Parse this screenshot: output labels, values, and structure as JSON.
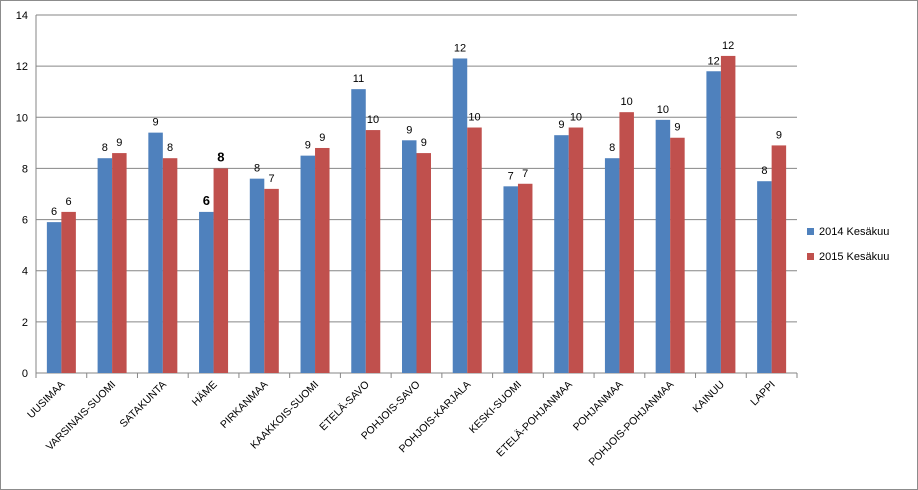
{
  "chart_data": {
    "type": "bar",
    "title": "",
    "xlabel": "",
    "ylabel": "",
    "ylim": [
      0,
      14
    ],
    "yticks": [
      0,
      2,
      4,
      6,
      8,
      10,
      12,
      14
    ],
    "grid": true,
    "legend_position": "right",
    "categories": [
      "UUSIMAA",
      "VARSINAIS-SUOMI",
      "SATAKUNTA",
      "HÄME",
      "PIRKANMAA",
      "KAAKKOIS-SUOMI",
      "ETELÄ-SAVO",
      "POHJOIS-SAVO",
      "POHJOIS-KARJALA",
      "KESKI-SUOMI",
      "ETELÄ-POHJANMAA",
      "POHJANMAA",
      "POHJOIS-POHJANMAA",
      "KAINUU",
      "LAPPI"
    ],
    "series": [
      {
        "name": "2014 Kesäkuu",
        "color": "#4f81bd",
        "values": [
          5.9,
          8.4,
          9.4,
          6.3,
          7.6,
          8.5,
          11.1,
          9.1,
          12.3,
          7.3,
          9.3,
          8.4,
          9.9,
          11.8,
          7.5
        ],
        "labels": [
          "6",
          "8",
          "9",
          "6",
          "8",
          "9",
          "11",
          "9",
          "12",
          "7",
          "9",
          "8",
          "10",
          "12",
          "8"
        ]
      },
      {
        "name": "2015 Kesäkuu",
        "color": "#c0504d",
        "values": [
          6.3,
          8.6,
          8.4,
          8.0,
          7.2,
          8.8,
          9.5,
          8.6,
          9.6,
          7.4,
          9.6,
          10.2,
          9.2,
          12.4,
          8.9
        ],
        "labels": [
          "6",
          "9",
          "8",
          "8",
          "7",
          "9",
          "10",
          "9",
          "10",
          "7",
          "10",
          "10",
          "9",
          "12",
          "9"
        ]
      }
    ],
    "emphasized_category": "HÄME"
  }
}
